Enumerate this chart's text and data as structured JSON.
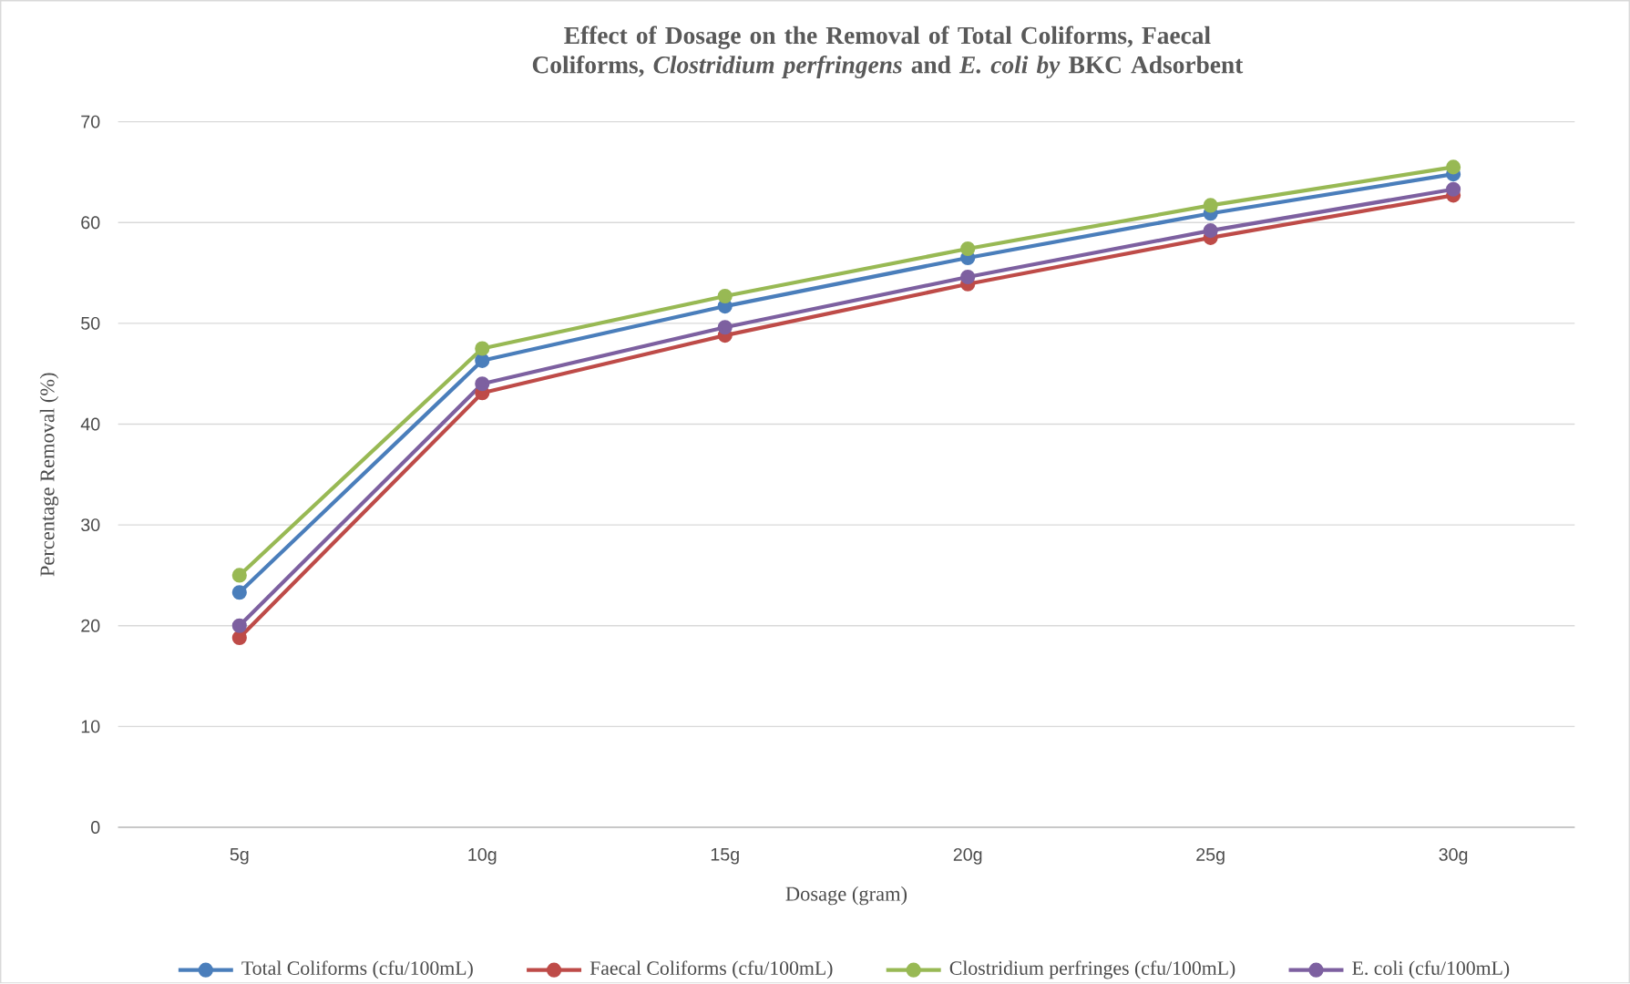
{
  "chart_data": {
    "type": "line",
    "title": "Effect of Dosage on the Removal of Total Coliforms, Faecal Coliforms, *Clostridium perfringens* and *E. coli by* BKC Adsorbent",
    "xlabel": "Dosage (gram)",
    "ylabel": "Percentage Removal (%)",
    "categories": [
      "5g",
      "10g",
      "15g",
      "20g",
      "25g",
      "30g"
    ],
    "series": [
      {
        "name": "Total Coliforms (cfu/100mL)",
        "color": "#4a7ebb",
        "values": [
          23.3,
          46.3,
          51.7,
          56.5,
          60.9,
          64.8
        ]
      },
      {
        "name": "Faecal Coliforms (cfu/100mL)",
        "color": "#be4b48",
        "values": [
          18.8,
          43.1,
          48.8,
          53.9,
          58.5,
          62.7
        ]
      },
      {
        "name": "Clostridium perfringes (cfu/100mL)",
        "color": "#98b954",
        "values": [
          25.0,
          47.5,
          52.7,
          57.4,
          61.7,
          65.5
        ]
      },
      {
        "name": "E. coli (cfu/100mL)",
        "color": "#7d60a0",
        "values": [
          20.0,
          44.0,
          49.6,
          54.6,
          59.2,
          63.3
        ]
      }
    ],
    "ylim": [
      0,
      70
    ],
    "yticks": [
      0,
      10,
      20,
      30,
      40,
      50,
      60,
      70
    ],
    "grid": "y",
    "legend": "bottom",
    "marker": "circle",
    "line_style": "solid"
  }
}
